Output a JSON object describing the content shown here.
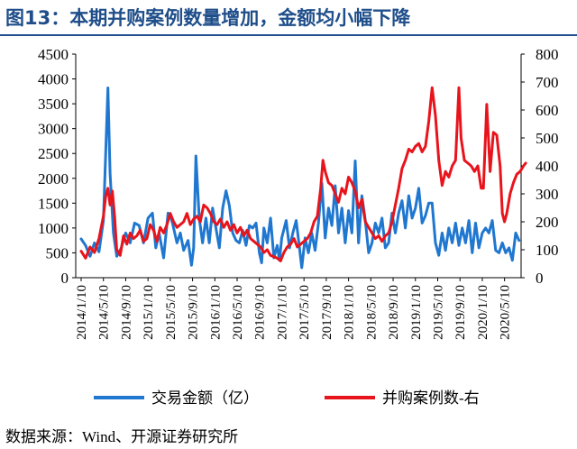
{
  "header": {
    "title": "图13：本期并购案例数量增加，金额均小幅下降"
  },
  "footer": {
    "source": "数据来源：Wind、开源证券研究所"
  },
  "chart_data": {
    "type": "line",
    "title": "",
    "xlabel": "",
    "ylabel": "",
    "y_left": {
      "range": [
        0,
        4500
      ],
      "ticks": [
        "0",
        "500",
        "1000",
        "1500",
        "2000",
        "2500",
        "3000",
        "3500",
        "4000",
        "4500"
      ]
    },
    "y_right": {
      "range": [
        0,
        800
      ],
      "ticks": [
        "0",
        "100",
        "200",
        "300",
        "400",
        "500",
        "600",
        "700",
        "800"
      ]
    },
    "x_ticks": [
      "2014/1/10",
      "2014/5/10",
      "2014/9/10",
      "2015/1/10",
      "2015/5/10",
      "2015/9/10",
      "2016/1/10",
      "2016/5/10",
      "2016/9/10",
      "2017/1/10",
      "2017/5/10",
      "2017/9/10",
      "2018/1/10",
      "2018/5/10",
      "2018/9/10",
      "2019/1/10",
      "2019/5/10",
      "2019/9/10",
      "2020/1/10",
      "2020/5/10"
    ],
    "legend_position": "bottom",
    "grid": false,
    "series": [
      {
        "name": "交易金额（亿）",
        "axis": "left",
        "color": "#1f77d0",
        "points": [
          [
            0.0,
            780
          ],
          [
            0.2,
            650
          ],
          [
            0.4,
            430
          ],
          [
            0.6,
            700
          ],
          [
            0.8,
            520
          ],
          [
            1.0,
            1150
          ],
          [
            1.2,
            3820
          ],
          [
            1.3,
            2100
          ],
          [
            1.45,
            900
          ],
          [
            1.6,
            430
          ],
          [
            1.8,
            600
          ],
          [
            2.0,
            900
          ],
          [
            2.2,
            700
          ],
          [
            2.4,
            1100
          ],
          [
            2.6,
            1050
          ],
          [
            2.8,
            700
          ],
          [
            3.0,
            1200
          ],
          [
            3.2,
            1300
          ],
          [
            3.35,
            600
          ],
          [
            3.5,
            900
          ],
          [
            3.7,
            400
          ],
          [
            3.9,
            1300
          ],
          [
            4.0,
            1250
          ],
          [
            4.1,
            1100
          ],
          [
            4.3,
            700
          ],
          [
            4.45,
            900
          ],
          [
            4.6,
            550
          ],
          [
            4.8,
            750
          ],
          [
            4.95,
            250
          ],
          [
            5.05,
            600
          ],
          [
            5.15,
            2450
          ],
          [
            5.3,
            1200
          ],
          [
            5.45,
            700
          ],
          [
            5.6,
            1200
          ],
          [
            5.75,
            700
          ],
          [
            5.9,
            1400
          ],
          [
            6.05,
            1000
          ],
          [
            6.2,
            600
          ],
          [
            6.35,
            1400
          ],
          [
            6.5,
            1750
          ],
          [
            6.65,
            1450
          ],
          [
            6.8,
            900
          ],
          [
            6.95,
            750
          ],
          [
            7.1,
            700
          ],
          [
            7.25,
            950
          ],
          [
            7.4,
            650
          ],
          [
            7.55,
            1050
          ],
          [
            7.7,
            1000
          ],
          [
            7.85,
            1100
          ],
          [
            8.0,
            500
          ],
          [
            8.1,
            300
          ],
          [
            8.2,
            1000
          ],
          [
            8.35,
            700
          ],
          [
            8.5,
            1200
          ],
          [
            8.65,
            400
          ],
          [
            8.8,
            650
          ],
          [
            8.9,
            350
          ],
          [
            9.0,
            800
          ],
          [
            9.2,
            1150
          ],
          [
            9.35,
            600
          ],
          [
            9.5,
            900
          ],
          [
            9.65,
            1150
          ],
          [
            9.8,
            600
          ],
          [
            9.9,
            200
          ],
          [
            10.05,
            800
          ],
          [
            10.2,
            500
          ],
          [
            10.35,
            900
          ],
          [
            10.5,
            550
          ],
          [
            10.65,
            1100
          ],
          [
            10.8,
            1900
          ],
          [
            10.95,
            800
          ],
          [
            11.1,
            1400
          ],
          [
            11.25,
            1050
          ],
          [
            11.4,
            1850
          ],
          [
            11.55,
            900
          ],
          [
            11.7,
            1400
          ],
          [
            11.85,
            700
          ],
          [
            12.0,
            1350
          ],
          [
            12.15,
            900
          ],
          [
            12.3,
            2350
          ],
          [
            12.45,
            700
          ],
          [
            12.6,
            1650
          ],
          [
            12.75,
            1150
          ],
          [
            12.9,
            500
          ],
          [
            13.05,
            700
          ],
          [
            13.2,
            1100
          ],
          [
            13.35,
            900
          ],
          [
            13.5,
            1200
          ],
          [
            13.65,
            600
          ],
          [
            13.8,
            700
          ],
          [
            13.95,
            1300
          ],
          [
            14.1,
            900
          ],
          [
            14.25,
            1300
          ],
          [
            14.4,
            1550
          ],
          [
            14.55,
            1000
          ],
          [
            14.7,
            1650
          ],
          [
            14.85,
            1200
          ],
          [
            15.0,
            1400
          ],
          [
            15.15,
            1800
          ],
          [
            15.3,
            1100
          ],
          [
            15.45,
            1250
          ],
          [
            15.6,
            1500
          ],
          [
            15.75,
            1500
          ],
          [
            15.9,
            700
          ],
          [
            16.05,
            450
          ],
          [
            16.2,
            900
          ],
          [
            16.35,
            550
          ],
          [
            16.5,
            1000
          ],
          [
            16.65,
            700
          ],
          [
            16.8,
            1100
          ],
          [
            16.95,
            650
          ],
          [
            17.1,
            1000
          ],
          [
            17.25,
            700
          ],
          [
            17.4,
            1150
          ],
          [
            17.55,
            500
          ],
          [
            17.7,
            1100
          ],
          [
            17.85,
            600
          ],
          [
            18.0,
            900
          ],
          [
            18.15,
            1000
          ],
          [
            18.3,
            900
          ],
          [
            18.45,
            1150
          ],
          [
            18.6,
            550
          ],
          [
            18.75,
            500
          ],
          [
            18.9,
            700
          ],
          [
            19.05,
            500
          ],
          [
            19.2,
            600
          ],
          [
            19.35,
            350
          ],
          [
            19.5,
            900
          ],
          [
            19.65,
            750
          ]
        ]
      },
      {
        "name": "并购案例数-右",
        "axis": "right",
        "color": "#e8141c",
        "points": [
          [
            0.0,
            95
          ],
          [
            0.2,
            70
          ],
          [
            0.4,
            110
          ],
          [
            0.6,
            90
          ],
          [
            0.8,
            140
          ],
          [
            1.0,
            220
          ],
          [
            1.1,
            290
          ],
          [
            1.2,
            320
          ],
          [
            1.3,
            260
          ],
          [
            1.4,
            310
          ],
          [
            1.5,
            220
          ],
          [
            1.6,
            100
          ],
          [
            1.75,
            80
          ],
          [
            1.9,
            150
          ],
          [
            2.05,
            120
          ],
          [
            2.2,
            160
          ],
          [
            2.35,
            140
          ],
          [
            2.5,
            150
          ],
          [
            2.65,
            170
          ],
          [
            2.8,
            130
          ],
          [
            2.95,
            140
          ],
          [
            3.1,
            190
          ],
          [
            3.25,
            170
          ],
          [
            3.4,
            130
          ],
          [
            3.55,
            180
          ],
          [
            3.7,
            160
          ],
          [
            3.85,
            190
          ],
          [
            4.0,
            230
          ],
          [
            4.15,
            200
          ],
          [
            4.3,
            180
          ],
          [
            4.45,
            190
          ],
          [
            4.6,
            200
          ],
          [
            4.75,
            230
          ],
          [
            4.9,
            190
          ],
          [
            5.05,
            210
          ],
          [
            5.2,
            220
          ],
          [
            5.35,
            200
          ],
          [
            5.5,
            260
          ],
          [
            5.65,
            250
          ],
          [
            5.8,
            230
          ],
          [
            5.95,
            200
          ],
          [
            6.1,
            190
          ],
          [
            6.25,
            210
          ],
          [
            6.4,
            180
          ],
          [
            6.55,
            200
          ],
          [
            6.7,
            170
          ],
          [
            6.85,
            190
          ],
          [
            7.0,
            160
          ],
          [
            7.15,
            180
          ],
          [
            7.3,
            150
          ],
          [
            7.45,
            170
          ],
          [
            7.6,
            140
          ],
          [
            7.75,
            130
          ],
          [
            7.9,
            120
          ],
          [
            8.05,
            110
          ],
          [
            8.2,
            90
          ],
          [
            8.35,
            100
          ],
          [
            8.5,
            80
          ],
          [
            8.65,
            75
          ],
          [
            8.8,
            70
          ],
          [
            8.95,
            60
          ],
          [
            9.1,
            90
          ],
          [
            9.25,
            110
          ],
          [
            9.4,
            120
          ],
          [
            9.55,
            140
          ],
          [
            9.7,
            110
          ],
          [
            9.85,
            120
          ],
          [
            10.0,
            130
          ],
          [
            10.15,
            140
          ],
          [
            10.3,
            160
          ],
          [
            10.45,
            200
          ],
          [
            10.6,
            220
          ],
          [
            10.75,
            320
          ],
          [
            10.85,
            420
          ],
          [
            10.95,
            380
          ],
          [
            11.1,
            340
          ],
          [
            11.25,
            330
          ],
          [
            11.4,
            300
          ],
          [
            11.55,
            270
          ],
          [
            11.7,
            320
          ],
          [
            11.85,
            300
          ],
          [
            12.0,
            360
          ],
          [
            12.15,
            340
          ],
          [
            12.3,
            310
          ],
          [
            12.45,
            250
          ],
          [
            12.6,
            280
          ],
          [
            12.75,
            200
          ],
          [
            12.9,
            180
          ],
          [
            13.05,
            160
          ],
          [
            13.2,
            140
          ],
          [
            13.35,
            150
          ],
          [
            13.5,
            130
          ],
          [
            13.65,
            150
          ],
          [
            13.8,
            160
          ],
          [
            13.95,
            200
          ],
          [
            14.1,
            260
          ],
          [
            14.25,
            320
          ],
          [
            14.4,
            390
          ],
          [
            14.55,
            420
          ],
          [
            14.7,
            460
          ],
          [
            14.85,
            450
          ],
          [
            15.0,
            470
          ],
          [
            15.15,
            480
          ],
          [
            15.3,
            450
          ],
          [
            15.45,
            470
          ],
          [
            15.6,
            560
          ],
          [
            15.75,
            680
          ],
          [
            15.9,
            580
          ],
          [
            16.05,
            420
          ],
          [
            16.2,
            330
          ],
          [
            16.35,
            380
          ],
          [
            16.5,
            360
          ],
          [
            16.65,
            400
          ],
          [
            16.8,
            420
          ],
          [
            16.95,
            680
          ],
          [
            17.05,
            500
          ],
          [
            17.2,
            420
          ],
          [
            17.35,
            410
          ],
          [
            17.5,
            400
          ],
          [
            17.65,
            380
          ],
          [
            17.8,
            400
          ],
          [
            17.95,
            320
          ],
          [
            18.05,
            320
          ],
          [
            18.2,
            620
          ],
          [
            18.35,
            380
          ],
          [
            18.5,
            520
          ],
          [
            18.65,
            510
          ],
          [
            18.8,
            400
          ],
          [
            18.9,
            230
          ],
          [
            19.0,
            200
          ],
          [
            19.1,
            230
          ],
          [
            19.25,
            300
          ],
          [
            19.4,
            340
          ],
          [
            19.55,
            370
          ],
          [
            19.7,
            380
          ],
          [
            19.85,
            400
          ],
          [
            19.95,
            410
          ]
        ]
      }
    ]
  }
}
